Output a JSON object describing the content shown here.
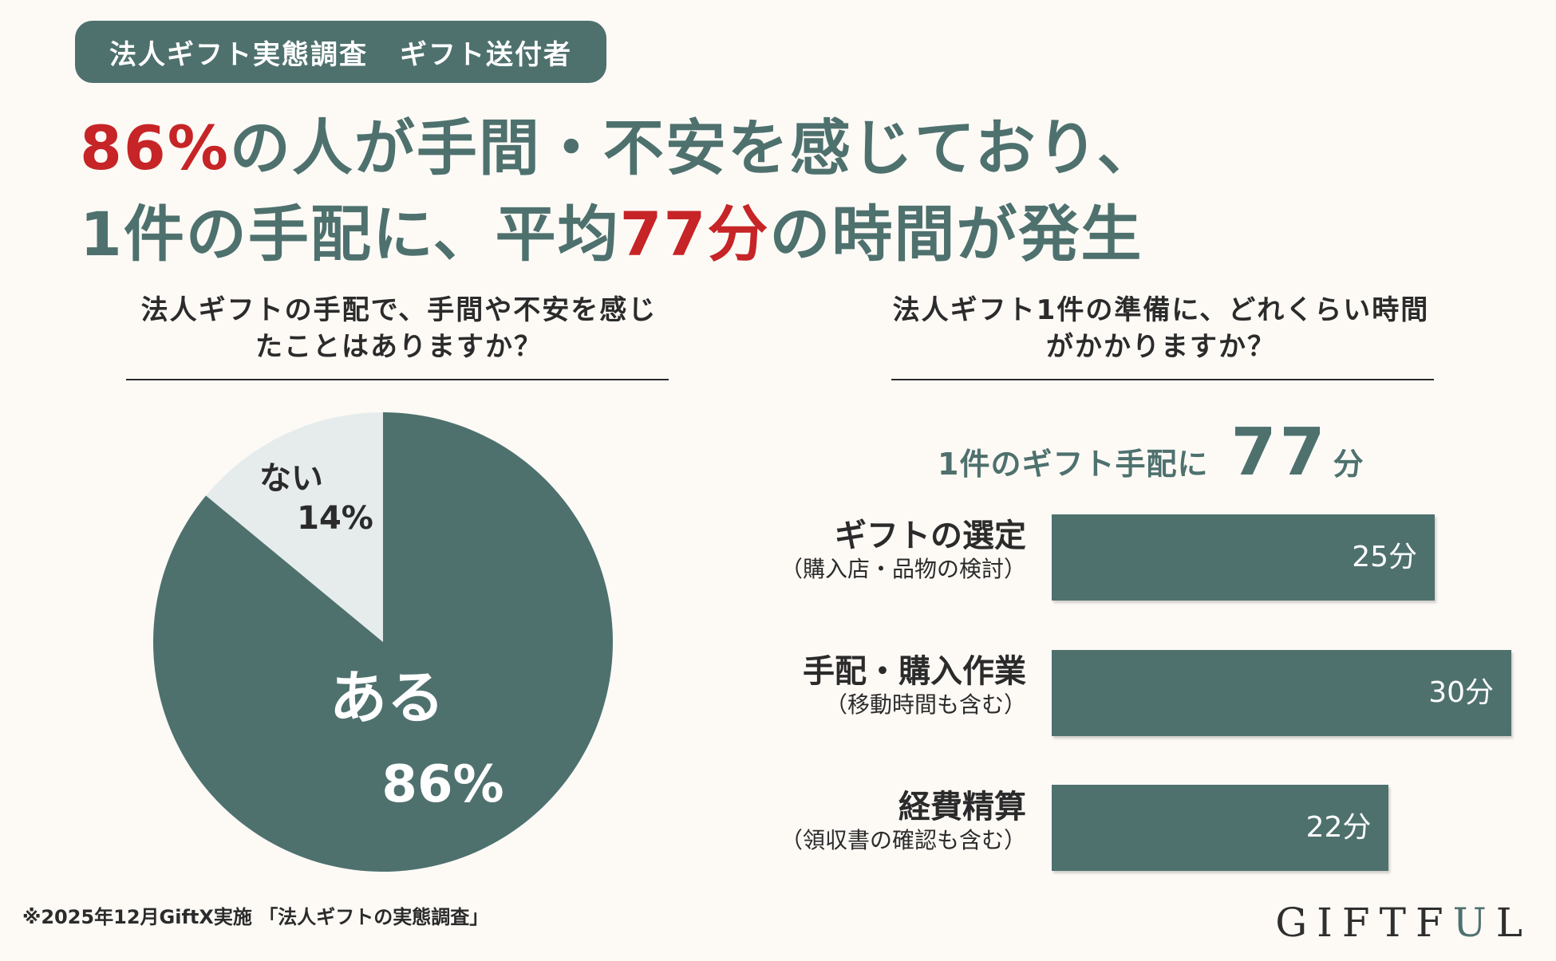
{
  "badge": {
    "left": "法人ギフト実態調査",
    "right": "ギフト送付者"
  },
  "headline": {
    "line1_highlight": "86%",
    "line1_rest": "の人が手間・不安を感じており、",
    "line2_pre": "1件の手配に、平均",
    "line2_highlight": "77分",
    "line2_post": "の時間が発生"
  },
  "colors": {
    "accent": "#4e716e",
    "highlight": "#c62426",
    "light_slice": "#e6ecec",
    "background": "#fdfaf6"
  },
  "chart_data": [
    {
      "type": "pie",
      "title": "法人ギフトの手配で、手間や不安を感じたことはありますか？",
      "slices": [
        {
          "label": "ある",
          "value": 86,
          "value_label": "86%",
          "color": "#4e716e"
        },
        {
          "label": "ない",
          "value": 14,
          "value_label": "14%",
          "color": "#e6ecec"
        }
      ]
    },
    {
      "type": "bar",
      "orientation": "horizontal",
      "title": "法人ギフト1件の準備に、どれくらい時間がかかりますか？",
      "total": {
        "prefix": "1件のギフト手配に",
        "value": "77",
        "unit": "分"
      },
      "unit": "分",
      "categories": [
        {
          "label": "ギフトの選定",
          "sub": "（購入店・品物の検討）"
        },
        {
          "label": "手配・購入作業",
          "sub": "（移動時間も含む）"
        },
        {
          "label": "経費精算",
          "sub": "（領収書の確認も含む）"
        }
      ],
      "values": [
        25,
        30,
        22
      ],
      "value_labels": [
        "25分",
        "30分",
        "22分"
      ],
      "xlim": [
        0,
        30
      ]
    }
  ],
  "source": "※2025年12月GiftX実施 「法人ギフトの実態調査」",
  "logo": {
    "pre": "GIFTF",
    "u": "U",
    "post": "L"
  }
}
